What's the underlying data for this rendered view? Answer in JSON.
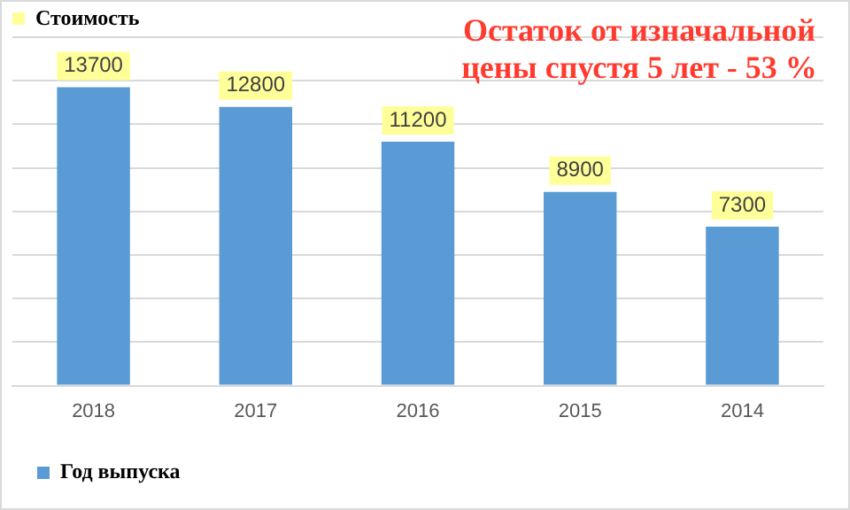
{
  "chart_data": {
    "type": "bar",
    "categories": [
      "2018",
      "2017",
      "2016",
      "2015",
      "2014"
    ],
    "series": [
      {
        "name": "Год выпуска",
        "color": "#5b9bd5",
        "values": [
          13700,
          12800,
          11200,
          8900,
          7300
        ]
      }
    ],
    "ylim": [
      0,
      16000
    ],
    "yticks": [
      {
        "value": 0,
        "label": null
      },
      {
        "value": 2000,
        "label": null
      },
      {
        "value": 4000,
        "label": null
      },
      {
        "value": 6000,
        "label": null
      },
      {
        "value": 8000,
        "label": null
      },
      {
        "value": 10000,
        "label": null
      },
      {
        "value": 12000,
        "label": null
      },
      {
        "value": 14000,
        "label": null
      },
      {
        "value": 16000,
        "label": null
      }
    ],
    "tick_labels": "x",
    "grid": "y",
    "legend": "bottom left",
    "data_labels": true,
    "legend_title": "Стоимость",
    "annotations": [
      "Остаток от изначальной цены спустя 5 лет - 53 %"
    ]
  }
}
